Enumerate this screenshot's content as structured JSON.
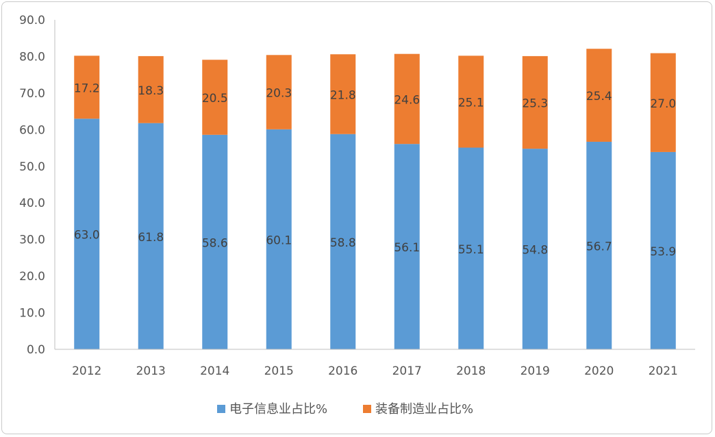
{
  "chart_data": {
    "type": "bar",
    "stacked": true,
    "categories": [
      "2012",
      "2013",
      "2014",
      "2015",
      "2016",
      "2017",
      "2018",
      "2019",
      "2020",
      "2021"
    ],
    "series": [
      {
        "name": "电子信息业占比%",
        "color": "#5B9BD5",
        "values": [
          63.0,
          61.8,
          58.6,
          60.1,
          58.8,
          56.1,
          55.1,
          54.8,
          56.7,
          53.9
        ]
      },
      {
        "name": "装备制造业占比%",
        "color": "#ED7D31",
        "values": [
          17.2,
          18.3,
          20.5,
          20.3,
          21.8,
          24.6,
          25.1,
          25.3,
          25.4,
          27.0
        ]
      }
    ],
    "ylim": [
      0,
      90
    ],
    "yticks": [
      "0.0",
      "10.0",
      "20.0",
      "30.0",
      "40.0",
      "50.0",
      "60.0",
      "70.0",
      "80.0",
      "90.0"
    ],
    "grid": false,
    "legend_position": "bottom",
    "title": "",
    "xlabel": "",
    "ylabel": ""
  }
}
